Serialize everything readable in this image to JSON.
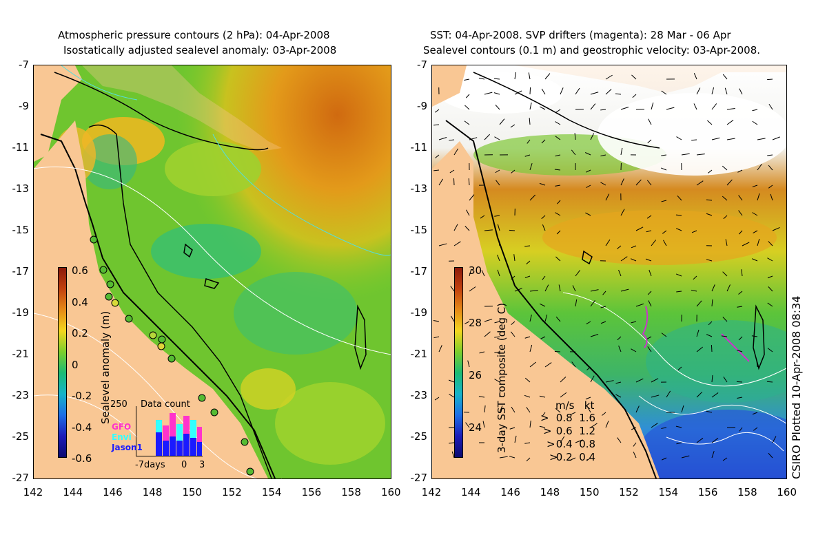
{
  "left_panel": {
    "title_line1": "Atmospheric pressure contours (2 hPa): 04-Apr-2008",
    "title_line2": "Isostatically adjusted sealevel anomaly: 03-Apr-2008",
    "colorbar_label": "Sealevel anomaly (m)",
    "colorbar_ticks": [
      "0.6",
      "0.4",
      "0.2",
      "0",
      "-0.2",
      "-0.4",
      "-0.6"
    ],
    "inset": {
      "title": "Data count",
      "ymax_label": "250",
      "x_labels": [
        "-7days",
        "0",
        "3"
      ],
      "legend": [
        {
          "name": "GFO",
          "color": "#ff33cc"
        },
        {
          "name": "Envi",
          "color": "#33ffff"
        },
        {
          "name": "Jason1",
          "color": "#1a1aff"
        }
      ]
    }
  },
  "right_panel": {
    "title_line1": "SST: 04-Apr-2008. SVP drifters (magenta): 28 Mar - 06 Apr",
    "title_line2": "Sealevel contours (0.1 m) and geostrophic velocity: 03-Apr-2008.",
    "colorbar_label": "3-day SST composite (deg C)",
    "colorbar_ticks": [
      "30",
      "28",
      "26",
      "24"
    ],
    "velocity_scale": {
      "header": [
        "m/s",
        "kt"
      ],
      "rows": [
        [
          "0.8",
          "1.6"
        ],
        [
          "0.6",
          "1.2"
        ],
        [
          "0.4",
          "0.8"
        ],
        [
          "0.2",
          "0.4"
        ]
      ]
    }
  },
  "y_axis_labels": [
    "-7",
    "-9",
    "-11",
    "-13",
    "-15",
    "-17",
    "-19",
    "-21",
    "-23",
    "-25",
    "-27"
  ],
  "x_axis_labels": [
    "142",
    "144",
    "146",
    "148",
    "150",
    "152",
    "154",
    "156",
    "158",
    "160"
  ],
  "side_credit": "CSIRO Plotted 10-Apr-2008 08:34",
  "colors": {
    "land": "#f9c794",
    "cloud": "#ffffff",
    "coast": "#000000"
  }
}
